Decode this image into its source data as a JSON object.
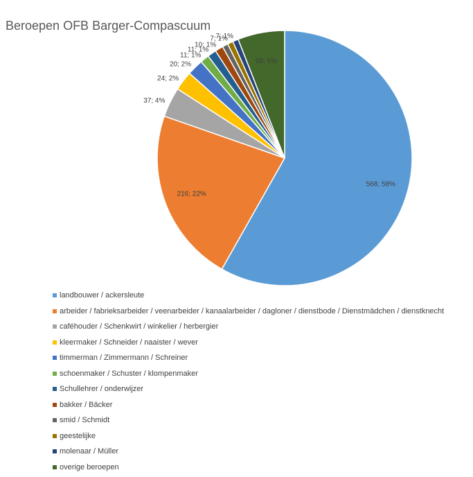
{
  "chart_data": {
    "type": "pie",
    "title": "Beroepen OFB Barger-Compascuum",
    "slices": [
      {
        "name": "landbouwer / ackersleute",
        "value": 568,
        "percent": "58%",
        "label": "568; 58%",
        "color": "#5B9BD5"
      },
      {
        "name": "arbeider / fabrieksarbeider / veenarbeider / kanaalarbeider / dagloner / dienstbode / Dienstmädchen / dienstknecht",
        "value": 216,
        "percent": "22%",
        "label": "216; 22%",
        "color": "#ED7D31"
      },
      {
        "name": " caféhouder / Schenkwirt / winkelier / herbergier",
        "value": 37,
        "percent": "4%",
        "label": "37; 4%",
        "color": "#A5A5A5"
      },
      {
        "name": "kleermaker / Schneider / naaister / wever",
        "value": 24,
        "percent": "2%",
        "label": "24; 2%",
        "color": "#FFC000"
      },
      {
        "name": "timmerman / Zimmermann / Schreiner",
        "value": 20,
        "percent": "2%",
        "label": "20; 2%",
        "color": "#4472C4"
      },
      {
        "name": "schoenmaker / Schuster / klompenmaker",
        "value": 11,
        "percent": "1%",
        "label": "11; 1%",
        "color": "#70AD47"
      },
      {
        "name": "Schullehrer / onderwijzer",
        "value": 11,
        "percent": "1%",
        "label": "11; 1%",
        "color": "#255E91"
      },
      {
        "name": "bakker / Bäcker",
        "value": 10,
        "percent": "1%",
        "label": "10; 1%",
        "color": "#9E480E"
      },
      {
        "name": "smid / Schmidt",
        "value": 7,
        "percent": "1%",
        "label": "",
        "color": "#636363"
      },
      {
        "name": "geestelijke",
        "value": 7,
        "percent": "1%",
        "label": "7; 1%",
        "color": "#997300"
      },
      {
        "name": "molenaar / Müller",
        "value": 7,
        "percent": "1%",
        "label": "7; 1%",
        "color": "#264478"
      },
      {
        "name": "overige beroepen",
        "value": 58,
        "percent": "6%",
        "label": "58; 6%",
        "color": "#43682B"
      }
    ],
    "legend_position": "bottom"
  }
}
